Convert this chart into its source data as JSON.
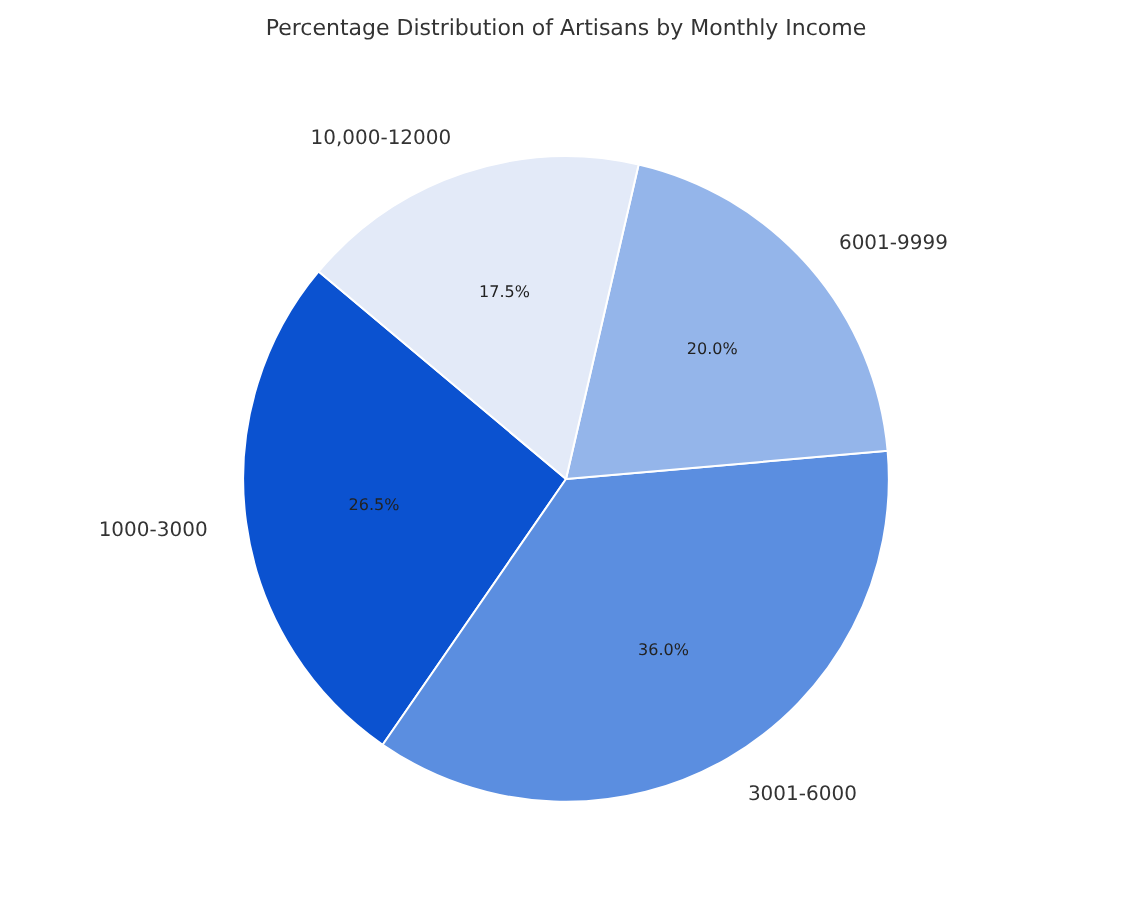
{
  "chart_data": {
    "type": "pie",
    "title": "Percentage Distribution of Artisans by Monthly Income",
    "categories": [
      "1000-3000",
      "3001-6000",
      "6001-9999",
      "10,000-12000"
    ],
    "values": [
      26.5,
      36.0,
      20.0,
      17.5
    ],
    "colors": [
      "#0b52d0",
      "#5b8ee0",
      "#94b5ea",
      "#e3eaf8"
    ],
    "value_labels": [
      "26.5%",
      "36.0%",
      "20.0%",
      "17.5%"
    ]
  }
}
